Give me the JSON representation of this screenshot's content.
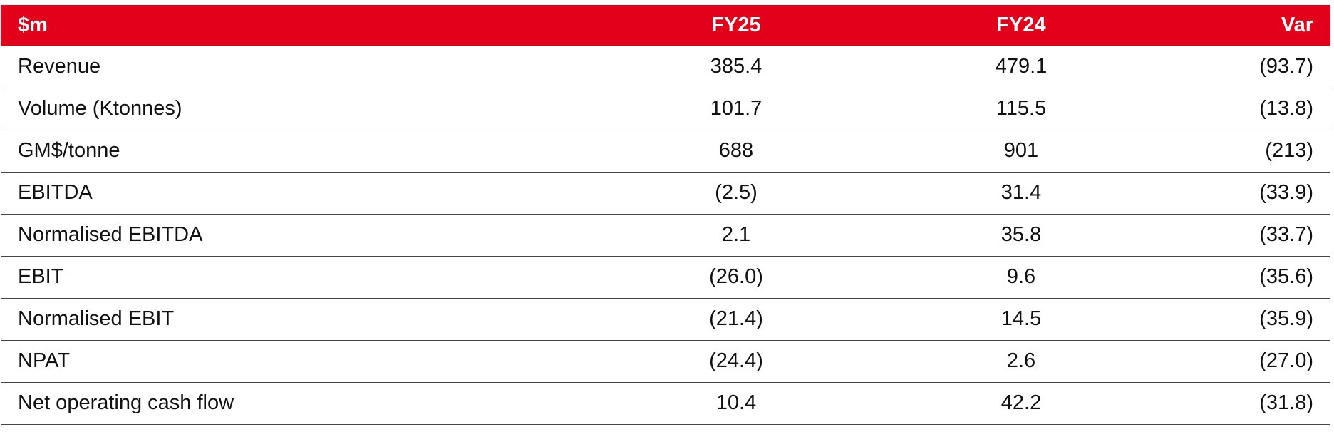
{
  "table": {
    "header": {
      "label": "$m",
      "fy25": "FY25",
      "fy24": "FY24",
      "var": "Var"
    },
    "rows": [
      {
        "label": "Revenue",
        "fy25": "385.4",
        "fy24": "479.1",
        "var": "(93.7)"
      },
      {
        "label": "Volume (Ktonnes)",
        "fy25": "101.7",
        "fy24": "115.5",
        "var": "(13.8)"
      },
      {
        "label": "GM$/tonne",
        "fy25": "688",
        "fy24": "901",
        "var": "(213)"
      },
      {
        "label": "EBITDA",
        "fy25": "(2.5)",
        "fy24": "31.4",
        "var": "(33.9)"
      },
      {
        "label": "Normalised EBITDA",
        "fy25": "2.1",
        "fy24": "35.8",
        "var": "(33.7)"
      },
      {
        "label": "EBIT",
        "fy25": "(26.0)",
        "fy24": "9.6",
        "var": "(35.6)"
      },
      {
        "label": "Normalised EBIT",
        "fy25": "(21.4)",
        "fy24": "14.5",
        "var": "(35.9)"
      },
      {
        "label": "NPAT",
        "fy25": "(24.4)",
        "fy24": "2.6",
        "var": "(27.0)"
      },
      {
        "label": "Net operating cash flow",
        "fy25": "10.4",
        "fy24": "42.2",
        "var": "(31.8)"
      }
    ]
  },
  "colors": {
    "header_background": "#e2001a",
    "header_text": "#ffffff",
    "body_text": "#111111",
    "row_divider": "#444444"
  }
}
